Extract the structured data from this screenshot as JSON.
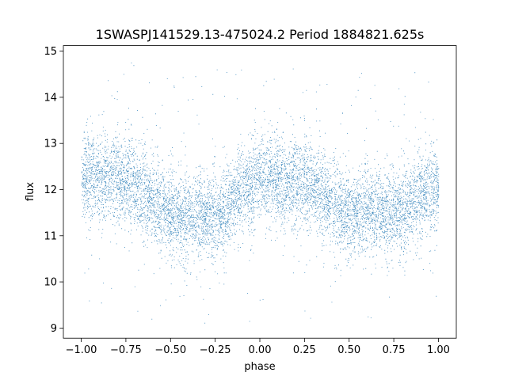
{
  "chart_data": {
    "type": "scatter",
    "title": "1SWASPJ141529.13-475024.2 Period 1884821.625s",
    "xlabel": "phase",
    "ylabel": "flux",
    "xlim": [
      -1.1,
      1.1
    ],
    "ylim": [
      8.78,
      15.12
    ],
    "xticks": [
      -1.0,
      -0.75,
      -0.5,
      -0.25,
      0.0,
      0.25,
      0.5,
      0.75,
      1.0
    ],
    "xtick_labels": [
      "−1.00",
      "−0.75",
      "−0.50",
      "−0.25",
      "0.00",
      "0.25",
      "0.50",
      "0.75",
      "1.00"
    ],
    "yticks": [
      9,
      10,
      11,
      12,
      13,
      14,
      15
    ],
    "ytick_labels": [
      "9",
      "10",
      "11",
      "12",
      "13",
      "14",
      "15"
    ],
    "grid": false,
    "legend": "none",
    "marker_color": "#1f77b4",
    "series": [
      {
        "x_range": [
          -1.0,
          1.0
        ],
        "trend_phase": [
          -1.0,
          -0.9,
          -0.75,
          -0.6,
          -0.45,
          -0.35,
          -0.25,
          -0.15,
          0.0,
          0.15,
          0.25,
          0.35,
          0.5,
          0.6,
          0.75,
          0.85,
          1.0
        ],
        "trend_flux": [
          12.2,
          12.3,
          12.2,
          11.8,
          11.4,
          11.5,
          11.4,
          11.8,
          12.3,
          12.1,
          12.2,
          11.9,
          11.4,
          11.6,
          11.5,
          11.8,
          12.1
        ],
        "typical_scatter": 0.45,
        "outlier_range": [
          9.1,
          14.8
        ]
      }
    ]
  }
}
